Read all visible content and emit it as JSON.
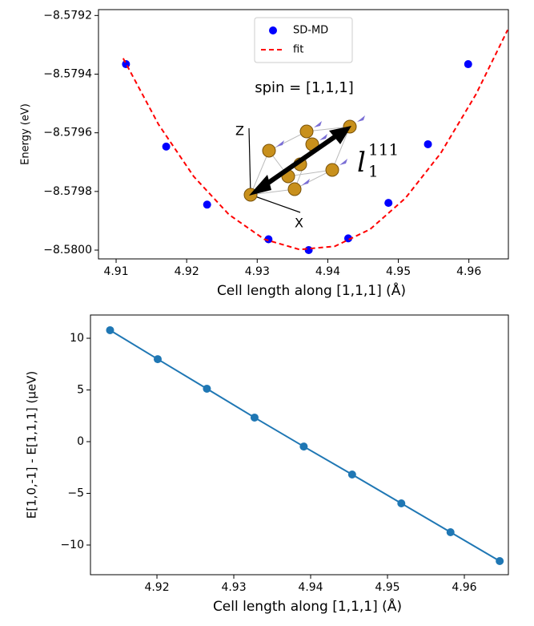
{
  "chart_data": [
    {
      "type": "scatter",
      "xlabel": "Cell length along [1,1,1] (Å)",
      "ylabel": "Energy (eV)",
      "annotations": [
        "spin = [1,1,1]",
        "Z",
        "X",
        "l",
        "111",
        "1"
      ],
      "xlim": [
        4.9075,
        4.9656
      ],
      "ylim": [
        -8.58003,
        -8.57918
      ],
      "xticks": [
        4.91,
        4.92,
        4.93,
        4.94,
        4.95,
        4.96
      ],
      "yticks": [
        {
          "value": -8.58,
          "label": "−8.5800"
        },
        {
          "value": -8.5798,
          "label": "−8.5798"
        },
        {
          "value": -8.5796,
          "label": "−8.5796"
        },
        {
          "value": -8.5794,
          "label": "−8.5794"
        },
        {
          "value": -8.5792,
          "label": "−8.5792"
        }
      ],
      "legend": "upper center",
      "series": [
        {
          "name": "SD-MD",
          "color": "#0000ff",
          "marker": "o",
          "x": [
            4.9114,
            4.9171,
            4.9229,
            4.9316,
            4.9373,
            4.9429,
            4.9486,
            4.9542,
            4.9599
          ],
          "values": [
            -8.579366,
            -8.579647,
            -8.579845,
            -8.579963,
            -8.58,
            -8.57996,
            -8.579839,
            -8.579639,
            -8.579366
          ]
        },
        {
          "name": "fit",
          "color": "#ff0000",
          "linestyle": "dashed",
          "x": [
            4.911,
            4.916,
            4.921,
            4.926,
            4.931,
            4.936,
            4.941,
            4.946,
            4.951,
            4.956,
            4.961,
            4.9655
          ],
          "values": [
            -8.579346,
            -8.579571,
            -8.579749,
            -8.579879,
            -8.579963,
            -8.579998,
            -8.579987,
            -8.579929,
            -8.579823,
            -8.57967,
            -8.579469,
            -8.579249
          ]
        }
      ]
    },
    {
      "type": "line",
      "xlabel": "Cell length along [1,1,1] (Å)",
      "ylabel": "E[1,0,-1] - E[1,1,1] (μeV)",
      "xlim": [
        4.91135,
        4.96573
      ],
      "ylim": [
        -12.87,
        12.25
      ],
      "xticks": [
        4.92,
        4.93,
        4.94,
        4.95,
        4.96
      ],
      "yticks": [
        {
          "value": -10,
          "label": "−10"
        },
        {
          "value": -5,
          "label": "−5"
        },
        0,
        5,
        10
      ],
      "series": [
        {
          "name": "E[1,0,-1] - E[1,1,1]",
          "color": "#1f77b4",
          "marker": "o",
          "x": [
            4.9139,
            4.9201,
            4.9265,
            4.9327,
            4.9391,
            4.9454,
            4.9518,
            4.9582,
            4.9646
          ],
          "values": [
            10.78,
            7.98,
            5.12,
            2.33,
            -0.47,
            -3.18,
            -5.97,
            -8.76,
            -11.55
          ]
        }
      ]
    }
  ]
}
